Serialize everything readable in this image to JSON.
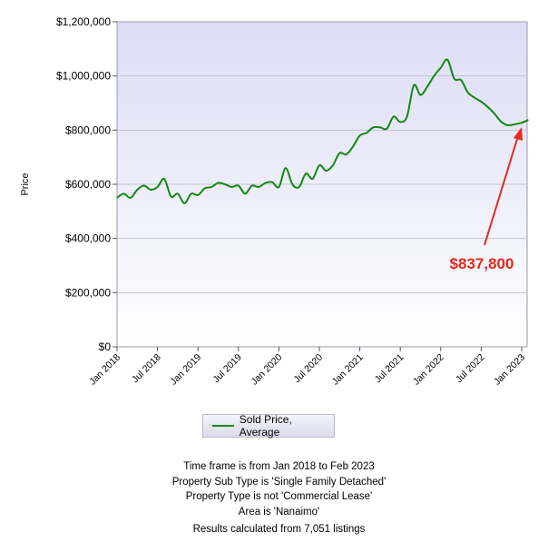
{
  "chart_data": {
    "type": "line",
    "ylabel": "Price",
    "xlabel": "",
    "ylim": [
      0,
      1200000
    ],
    "y_ticks": [
      "$1,200,000",
      "$1,000,000",
      "$800,000",
      "$600,000",
      "$400,000",
      "$200,000",
      "$0"
    ],
    "y_tick_values": [
      1200000,
      1000000,
      800000,
      600000,
      400000,
      200000,
      0
    ],
    "x_ticks": [
      "Jan 2018",
      "Jul 2018",
      "Jan 2019",
      "Jul 2019",
      "Jan 2020",
      "Jul 2020",
      "Jan 2021",
      "Jul 2021",
      "Jan 2022",
      "Jul 2022",
      "Jan 2023"
    ],
    "grid": true,
    "series": [
      {
        "name": "Sold Price, Average",
        "color": "#118811",
        "x": [
          "2018-01",
          "2018-02",
          "2018-03",
          "2018-04",
          "2018-05",
          "2018-06",
          "2018-07",
          "2018-08",
          "2018-09",
          "2018-10",
          "2018-11",
          "2018-12",
          "2019-01",
          "2019-02",
          "2019-03",
          "2019-04",
          "2019-05",
          "2019-06",
          "2019-07",
          "2019-08",
          "2019-09",
          "2019-10",
          "2019-11",
          "2019-12",
          "2020-01",
          "2020-02",
          "2020-03",
          "2020-04",
          "2020-05",
          "2020-06",
          "2020-07",
          "2020-08",
          "2020-09",
          "2020-10",
          "2020-11",
          "2020-12",
          "2021-01",
          "2021-02",
          "2021-03",
          "2021-04",
          "2021-05",
          "2021-06",
          "2021-07",
          "2021-08",
          "2021-09",
          "2021-10",
          "2021-11",
          "2021-12",
          "2022-01",
          "2022-02",
          "2022-03",
          "2022-04",
          "2022-05",
          "2022-06",
          "2022-07",
          "2022-08",
          "2022-09",
          "2022-10",
          "2022-11",
          "2022-12",
          "2023-01",
          "2023-02"
        ],
        "values": [
          550000,
          565000,
          550000,
          580000,
          595000,
          580000,
          590000,
          620000,
          555000,
          565000,
          530000,
          565000,
          560000,
          585000,
          590000,
          605000,
          600000,
          590000,
          595000,
          565000,
          595000,
          590000,
          605000,
          608000,
          590000,
          660000,
          600000,
          590000,
          640000,
          620000,
          670000,
          650000,
          670000,
          715000,
          710000,
          740000,
          780000,
          790000,
          810000,
          810000,
          805000,
          850000,
          830000,
          850000,
          965000,
          930000,
          960000,
          1000000,
          1030000,
          1060000,
          990000,
          985000,
          940000,
          920000,
          905000,
          885000,
          860000,
          830000,
          818000,
          822000,
          827000,
          837800
        ]
      }
    ],
    "annotation": {
      "text": "$837,800",
      "color": "#e8281c"
    }
  },
  "legend": {
    "label": "Sold Price, Average"
  },
  "notes": [
    "Time frame is from Jan 2018 to Feb 2023",
    "Property Sub Type is 'Single Family Detached'",
    "Property Type is not 'Commercial Lease'",
    "Area is 'Nanaimo'",
    "Results calculated from 7,051 listings"
  ]
}
